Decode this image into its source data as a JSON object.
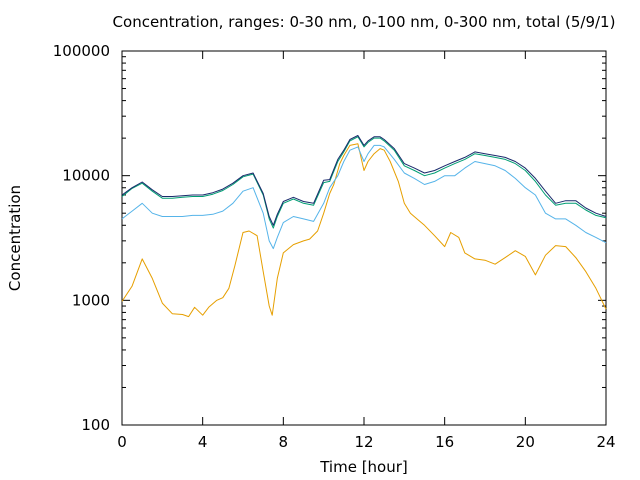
{
  "chart_data": {
    "type": "line",
    "title": "Concentration, ranges: 0-30 nm, 0-100 nm, 0-300 nm, total (5/9/1)",
    "xlabel": "Time [hour]",
    "ylabel": "Concentration",
    "xlim": [
      0,
      24
    ],
    "ylim": [
      100,
      100000
    ],
    "y_scale": "log",
    "grid": false,
    "legend": "none",
    "x_ticks": [
      0,
      4,
      8,
      12,
      16,
      20,
      24
    ],
    "x_tick_labels": [
      "0",
      "4",
      "8",
      "12",
      "16",
      "20",
      "24"
    ],
    "y_ticks": [
      100,
      1000,
      10000,
      100000
    ],
    "y_tick_labels": [
      "100",
      "1000",
      "10000",
      "100000"
    ],
    "series": [
      {
        "color": "#e69f00",
        "x": [
          0,
          0.5,
          1.0,
          1.5,
          2.0,
          2.5,
          3.0,
          3.3,
          3.6,
          4.0,
          4.3,
          4.7,
          5.0,
          5.3,
          5.6,
          6.0,
          6.3,
          6.7,
          7.0,
          7.3,
          7.45,
          7.7,
          8.0,
          8.5,
          9.0,
          9.3,
          9.7,
          10.0,
          10.3,
          10.5,
          10.8,
          11.0,
          11.3,
          11.7,
          12.0,
          12.2,
          12.5,
          12.8,
          13.0,
          13.3,
          13.7,
          14.0,
          14.3,
          14.7,
          15.0,
          15.5,
          16.0,
          16.3,
          16.7,
          17.0,
          17.5,
          18.0,
          18.5,
          19.0,
          19.5,
          20.0,
          20.5,
          21.0,
          21.5,
          22.0,
          22.5,
          23.0,
          23.5,
          24.0
        ],
        "values": [
          980,
          1300,
          2150,
          1500,
          950,
          780,
          770,
          740,
          880,
          760,
          880,
          1000,
          1050,
          1250,
          1900,
          3500,
          3600,
          3300,
          1700,
          900,
          760,
          1500,
          2400,
          2800,
          3000,
          3100,
          3600,
          5000,
          7200,
          8500,
          12500,
          14500,
          17500,
          18000,
          11000,
          13000,
          15000,
          16500,
          16000,
          13000,
          9000,
          6000,
          5000,
          4400,
          4000,
          3300,
          2700,
          3500,
          3200,
          2400,
          2150,
          2100,
          1950,
          2200,
          2500,
          2250,
          1600,
          2300,
          2750,
          2700,
          2200,
          1700,
          1250,
          850
        ]
      },
      {
        "color": "#56b4e9",
        "x": [
          0,
          0.5,
          1.0,
          1.5,
          2.0,
          2.5,
          3.0,
          3.5,
          4.0,
          4.5,
          5.0,
          5.5,
          6.0,
          6.5,
          7.0,
          7.3,
          7.5,
          7.7,
          8.0,
          8.5,
          9.0,
          9.5,
          10.0,
          10.3,
          10.7,
          11.0,
          11.3,
          11.7,
          12.0,
          12.2,
          12.5,
          12.8,
          13.0,
          13.5,
          14.0,
          14.5,
          15.0,
          15.5,
          16.0,
          16.5,
          17.0,
          17.5,
          18.0,
          18.5,
          19.0,
          19.5,
          20.0,
          20.5,
          21.0,
          21.5,
          22.0,
          22.5,
          23.0,
          23.5,
          24.0
        ],
        "values": [
          4500,
          5200,
          6000,
          5000,
          4700,
          4700,
          4700,
          4800,
          4800,
          4900,
          5200,
          6000,
          7500,
          8000,
          5000,
          3000,
          2600,
          3200,
          4200,
          4700,
          4500,
          4300,
          6000,
          8000,
          10000,
          13000,
          16000,
          17000,
          13000,
          15000,
          17500,
          17500,
          17000,
          13500,
          10500,
          9500,
          8500,
          9000,
          10000,
          10000,
          11500,
          13000,
          12500,
          12000,
          11000,
          9500,
          8000,
          7000,
          5000,
          4500,
          4500,
          4000,
          3500,
          3200,
          2900
        ]
      },
      {
        "color": "#009e73",
        "x": [
          0,
          0.5,
          1.0,
          1.5,
          2.0,
          2.5,
          3.0,
          3.5,
          4.0,
          4.5,
          5.0,
          5.5,
          6.0,
          6.5,
          7.0,
          7.3,
          7.5,
          7.7,
          8.0,
          8.5,
          9.0,
          9.5,
          10.0,
          10.3,
          10.7,
          11.0,
          11.3,
          11.7,
          12.0,
          12.2,
          12.5,
          12.8,
          13.0,
          13.5,
          14.0,
          14.5,
          15.0,
          15.5,
          16.0,
          16.5,
          17.0,
          17.5,
          18.0,
          18.5,
          19.0,
          19.5,
          20.0,
          20.5,
          21.0,
          21.5,
          22.0,
          22.5,
          23.0,
          23.5,
          24.0
        ],
        "values": [
          6800,
          7900,
          8700,
          7500,
          6600,
          6600,
          6700,
          6800,
          6800,
          7100,
          7600,
          8500,
          9800,
          10300,
          7000,
          4500,
          3800,
          4700,
          6000,
          6500,
          6000,
          5800,
          8800,
          9000,
          13000,
          15500,
          19000,
          20500,
          17000,
          18500,
          20000,
          20000,
          19000,
          16000,
          12000,
          11000,
          10000,
          10500,
          11500,
          12500,
          13500,
          15000,
          14500,
          14000,
          13500,
          12500,
          11000,
          9000,
          7000,
          5800,
          6000,
          6000,
          5300,
          4800,
          4600
        ]
      },
      {
        "color": "#1a2a6c",
        "x": [
          0,
          0.5,
          1.0,
          1.5,
          2.0,
          2.5,
          3.0,
          3.5,
          4.0,
          4.5,
          5.0,
          5.5,
          6.0,
          6.5,
          7.0,
          7.3,
          7.5,
          7.7,
          8.0,
          8.5,
          9.0,
          9.5,
          10.0,
          10.3,
          10.7,
          11.0,
          11.3,
          11.7,
          12.0,
          12.2,
          12.5,
          12.8,
          13.0,
          13.5,
          14.0,
          14.5,
          15.0,
          15.5,
          16.0,
          16.5,
          17.0,
          17.5,
          18.0,
          18.5,
          19.0,
          19.5,
          20.0,
          20.5,
          21.0,
          21.5,
          22.0,
          22.5,
          23.0,
          23.5,
          24.0
        ],
        "values": [
          7000,
          8000,
          8900,
          7700,
          6800,
          6800,
          6900,
          7000,
          7000,
          7300,
          7800,
          8700,
          10000,
          10500,
          7200,
          4700,
          4000,
          4900,
          6200,
          6700,
          6200,
          6000,
          9200,
          9300,
          13500,
          16000,
          19500,
          21000,
          17500,
          19000,
          20500,
          20500,
          19500,
          16500,
          12500,
          11500,
          10500,
          11000,
          12000,
          13000,
          14000,
          15500,
          15000,
          14500,
          14000,
          13000,
          11500,
          9500,
          7500,
          6000,
          6300,
          6300,
          5500,
          5000,
          4700
        ]
      }
    ]
  }
}
